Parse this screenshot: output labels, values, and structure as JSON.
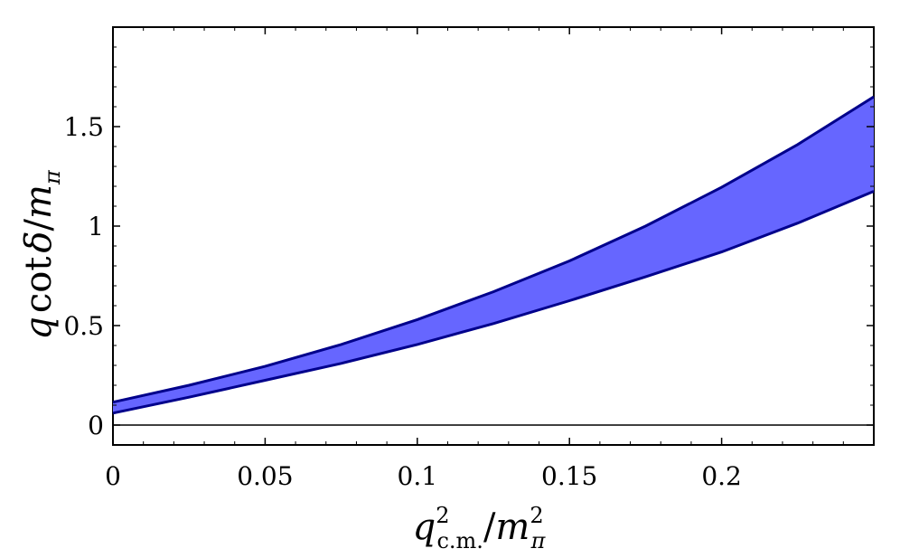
{
  "chart_data": {
    "type": "area",
    "xlabel": {
      "main": "q",
      "sup": "2",
      "sub": "c.m.",
      "slash": "/",
      "main2": "m",
      "sup2": "2",
      "sub2": "π"
    },
    "ylabel": {
      "q": "q",
      "cot": "cot",
      "delta": "δ",
      "slash": "/",
      "m": "m",
      "sub": "π"
    },
    "xlim": [
      0,
      0.25
    ],
    "ylim": [
      -0.1,
      2.0
    ],
    "x_ticks": [
      0,
      0.05,
      0.1,
      0.15,
      0.2
    ],
    "x_tick_labels": [
      "0",
      "0.05",
      "0.1",
      "0.15",
      "0.2"
    ],
    "y_ticks": [
      0,
      0.5,
      1,
      1.5
    ],
    "y_tick_labels": [
      "0",
      "0.5",
      "1",
      "1.5"
    ],
    "zero_line": true,
    "fill_color": "#6666ff",
    "line_color": "#00008b",
    "x": [
      0,
      0.025,
      0.05,
      0.075,
      0.1,
      0.125,
      0.15,
      0.175,
      0.2,
      0.225,
      0.25
    ],
    "series": [
      {
        "values": [
          0.115,
          0.2,
          0.295,
          0.405,
          0.53,
          0.67,
          0.825,
          1.0,
          1.195,
          1.41,
          1.65
        ]
      },
      {
        "values": [
          0.06,
          0.14,
          0.225,
          0.31,
          0.405,
          0.51,
          0.625,
          0.745,
          0.87,
          1.015,
          1.175
        ]
      }
    ]
  }
}
